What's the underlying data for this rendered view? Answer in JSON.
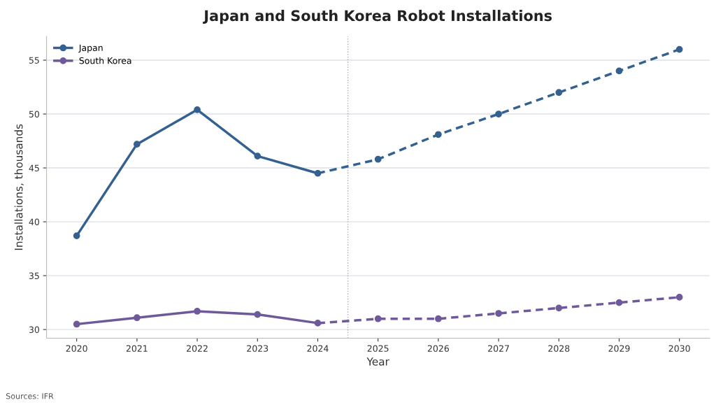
{
  "chart_data": {
    "type": "line",
    "title": "Japan and South Korea Robot Installations",
    "xlabel": "Year",
    "ylabel": "Installations, thousands",
    "series": [
      {
        "name": "Japan",
        "color": "#34618f",
        "x": [
          2020,
          2021,
          2022,
          2023,
          2024
        ],
        "values": [
          38.7,
          47.2,
          50.4,
          46.1,
          44.5
        ],
        "line_style": "solid"
      },
      {
        "name": "South Korea",
        "color": "#6e5a9b",
        "x": [
          2020,
          2021,
          2022,
          2023,
          2024
        ],
        "values": [
          30.5,
          31.1,
          31.7,
          31.4,
          30.6
        ],
        "line_style": "solid"
      },
      {
        "color": "#34618f",
        "x": [
          2024,
          2025,
          2026,
          2027,
          2028,
          2029,
          2030
        ],
        "values": [
          44.5,
          45.8,
          48.1,
          50.0,
          52.0,
          54.0,
          56.0
        ],
        "line_style": "dashed"
      },
      {
        "color": "#6e5a9b",
        "x": [
          2024,
          2025,
          2026,
          2027,
          2028,
          2029,
          2030
        ],
        "values": [
          30.6,
          31.0,
          31.0,
          31.5,
          32.0,
          32.5,
          33.0
        ],
        "line_style": "dashed"
      }
    ],
    "xlim": [
      2019.5,
      2030.5
    ],
    "xticks": [
      2020,
      2021,
      2022,
      2023,
      2024,
      2025,
      2026,
      2027,
      2028,
      2029,
      2030
    ],
    "ylim": [
      29.2,
      57.2
    ],
    "yticks": [
      30,
      35,
      40,
      45,
      50,
      55
    ],
    "ref_lines": [
      {
        "axis": "x",
        "value": 2024.5,
        "color": "#aaaabb",
        "line_style": "dotted"
      }
    ],
    "grid": "y",
    "legend": "top left",
    "marker": "circle",
    "annotations": [
      "Sources: IFR"
    ]
  }
}
